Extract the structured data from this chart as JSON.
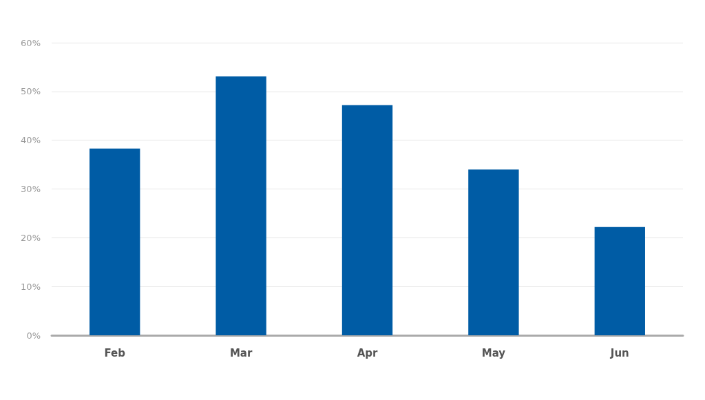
{
  "chart_data": {
    "type": "bar",
    "categories": [
      "Feb",
      "Mar",
      "Apr",
      "May",
      "Jun"
    ],
    "values": [
      38.3,
      53.1,
      47.2,
      34.0,
      22.2
    ],
    "color": "#005ca5",
    "ylim": [
      0,
      60
    ],
    "yticks": [
      {
        "value": 0,
        "label": "0%"
      },
      {
        "value": 10,
        "label": "10%"
      },
      {
        "value": 20,
        "label": "20%"
      },
      {
        "value": 30,
        "label": "30%"
      },
      {
        "value": 40,
        "label": "40%"
      },
      {
        "value": 50,
        "label": "50%"
      },
      {
        "value": 60,
        "label": "60%"
      }
    ],
    "grid": "y"
  }
}
